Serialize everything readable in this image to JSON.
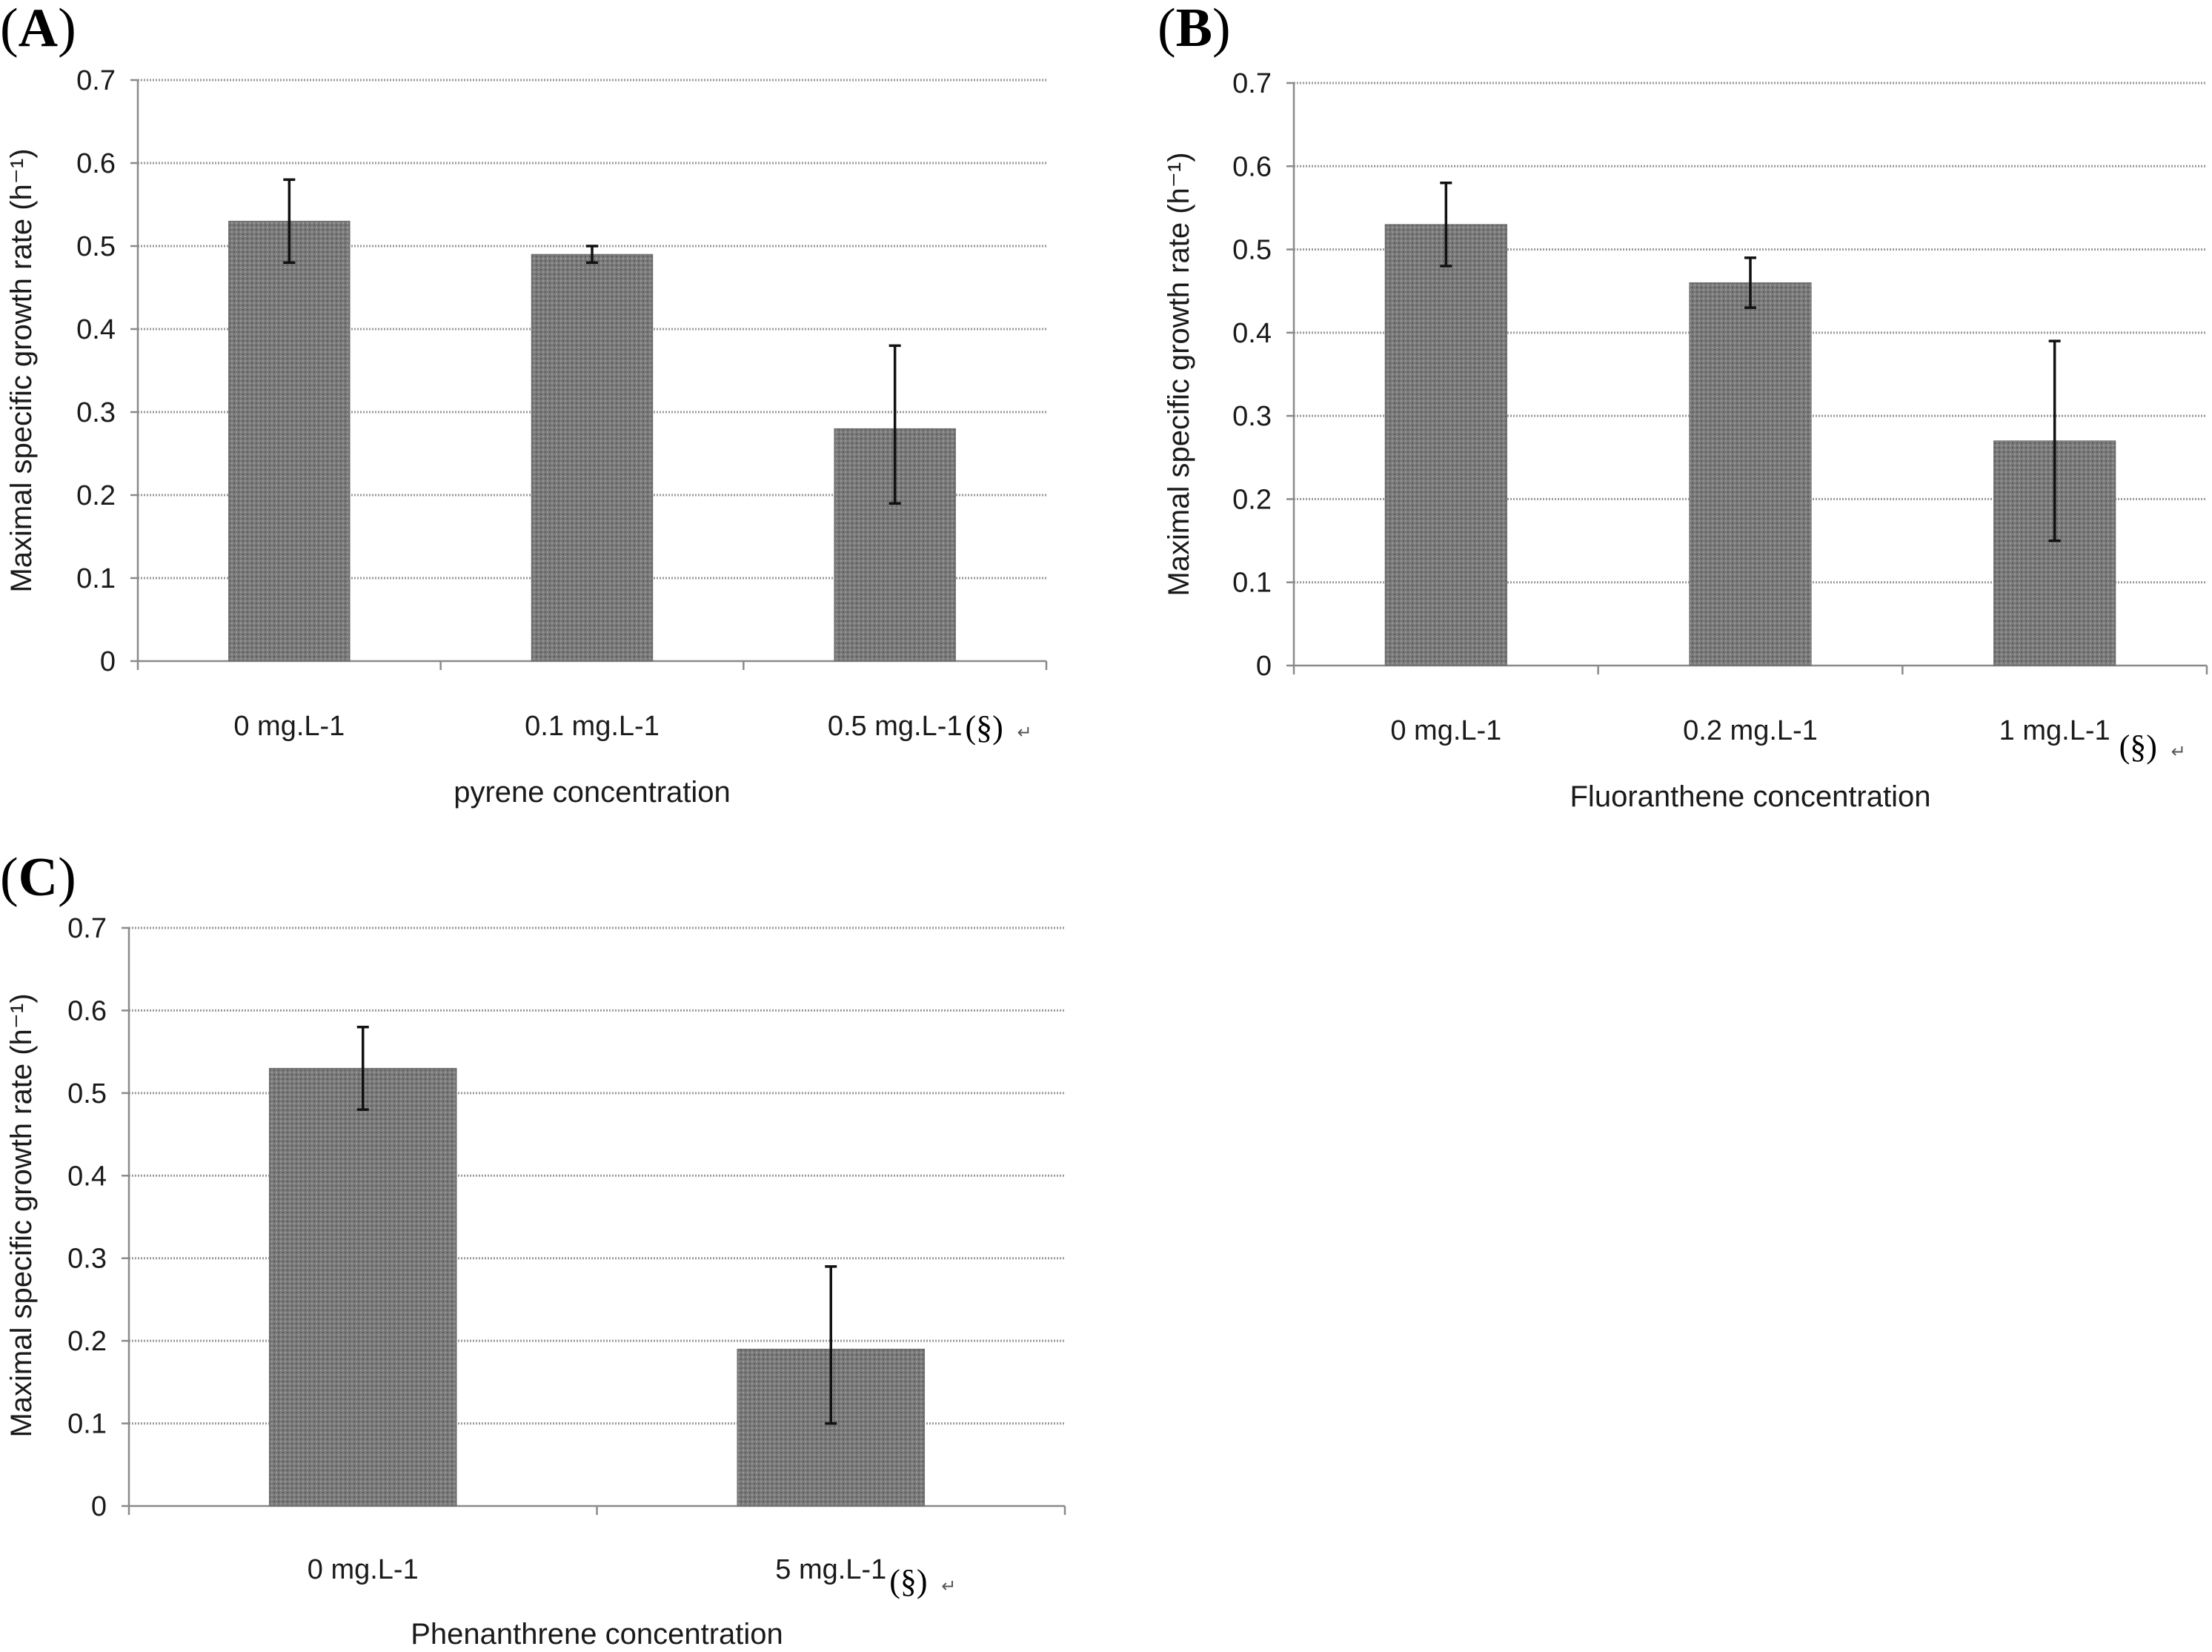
{
  "panels": [
    {
      "label": "A",
      "ylabel": "Maximal specific growth rate (h⁻¹)",
      "xlabel": "pyrene concentration",
      "categories": [
        "0 mg.L-1",
        "0.1 mg.L-1",
        "0.5 mg.L-1"
      ],
      "marks": [
        "",
        "",
        "(§)"
      ]
    },
    {
      "label": "B",
      "ylabel": "Maximal specific growth rate (h⁻¹)",
      "xlabel": "Fluoranthene concentration",
      "categories": [
        "0 mg.L-1",
        "0.2 mg.L-1",
        "1 mg.L-1"
      ],
      "marks": [
        "",
        "",
        "(§)"
      ]
    },
    {
      "label": "C",
      "ylabel": "Maximal specific growth rate (h⁻¹)",
      "xlabel": "Phenanthrene concentration",
      "categories": [
        "0 mg.L-1",
        "5 mg.L-1"
      ],
      "marks": [
        "",
        "(§)"
      ]
    }
  ],
  "chart_data": [
    {
      "type": "bar",
      "title": "(A)",
      "categories": [
        "0 mg.L-1",
        "0.1 mg.L-1",
        "0.5 mg.L-1"
      ],
      "values": [
        0.53,
        0.49,
        0.28
      ],
      "error_low": [
        0.48,
        0.48,
        0.19
      ],
      "error_high": [
        0.58,
        0.5,
        0.38
      ],
      "xlabel": "pyrene concentration",
      "ylabel": "Maximal specific growth rate (h-1)",
      "ylim": [
        0,
        0.7
      ],
      "yticks": [
        "0",
        "0.1",
        "0.2",
        "0.3",
        "0.4",
        "0.5",
        "0.6",
        "0.7"
      ],
      "grid": true,
      "color": "#777777"
    },
    {
      "type": "bar",
      "title": "(B)",
      "categories": [
        "0 mg.L-1",
        "0.2 mg.L-1",
        "1 mg.L-1"
      ],
      "values": [
        0.53,
        0.46,
        0.27
      ],
      "error_low": [
        0.48,
        0.43,
        0.15
      ],
      "error_high": [
        0.58,
        0.49,
        0.39
      ],
      "xlabel": "Fluoranthene concentration",
      "ylabel": "Maximal specific growth rate (h-1)",
      "ylim": [
        0,
        0.7
      ],
      "yticks": [
        "0",
        "0.1",
        "0.2",
        "0.3",
        "0.4",
        "0.5",
        "0.6",
        "0.7"
      ],
      "grid": true,
      "color": "#777777"
    },
    {
      "type": "bar",
      "title": "(C)",
      "categories": [
        "0 mg.L-1",
        "5 mg.L-1"
      ],
      "values": [
        0.53,
        0.19
      ],
      "error_low": [
        0.48,
        0.1
      ],
      "error_high": [
        0.58,
        0.29
      ],
      "xlabel": "Phenanthrene concentration",
      "ylabel": "Maximal specific growth rate (h-1)",
      "ylim": [
        0,
        0.7
      ],
      "yticks": [
        "0",
        "0.1",
        "0.2",
        "0.3",
        "0.4",
        "0.5",
        "0.6",
        "0.7"
      ],
      "grid": true,
      "color": "#777777"
    }
  ]
}
